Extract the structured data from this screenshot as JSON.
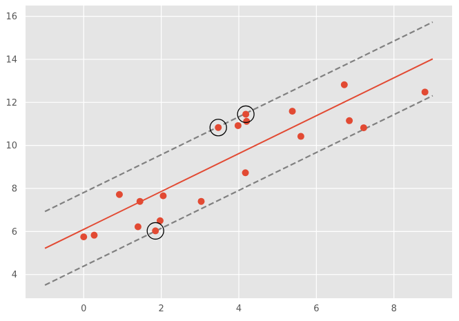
{
  "chart_data": {
    "type": "scatter",
    "title": "",
    "xlabel": "",
    "ylabel": "",
    "xlim": [
      -1.5,
      9.5
    ],
    "ylim": [
      2.9,
      16.5
    ],
    "x_ticks": [
      0,
      2,
      4,
      6,
      8
    ],
    "y_ticks": [
      4,
      6,
      8,
      10,
      12,
      14,
      16
    ],
    "grid": true,
    "legend": "none",
    "points": [
      {
        "x": 0.0,
        "y": 5.75
      },
      {
        "x": 0.27,
        "y": 5.83
      },
      {
        "x": 0.92,
        "y": 7.72
      },
      {
        "x": 1.4,
        "y": 6.22
      },
      {
        "x": 1.45,
        "y": 7.4
      },
      {
        "x": 1.85,
        "y": 6.03
      },
      {
        "x": 1.97,
        "y": 6.5
      },
      {
        "x": 2.05,
        "y": 7.66
      },
      {
        "x": 3.03,
        "y": 7.4
      },
      {
        "x": 3.47,
        "y": 10.83
      },
      {
        "x": 3.98,
        "y": 10.92
      },
      {
        "x": 4.17,
        "y": 8.73
      },
      {
        "x": 4.18,
        "y": 11.45
      },
      {
        "x": 4.2,
        "y": 11.12
      },
      {
        "x": 5.38,
        "y": 11.59
      },
      {
        "x": 5.6,
        "y": 10.42
      },
      {
        "x": 6.72,
        "y": 12.82
      },
      {
        "x": 6.85,
        "y": 11.15
      },
      {
        "x": 7.22,
        "y": 10.82
      },
      {
        "x": 8.8,
        "y": 12.48
      }
    ],
    "highlighted_points": [
      {
        "x": 1.85,
        "y": 6.03
      },
      {
        "x": 3.47,
        "y": 10.83
      },
      {
        "x": 4.18,
        "y": 11.45
      }
    ],
    "fit_line": {
      "x": [
        -1.0,
        9.0
      ],
      "y": [
        5.22,
        14.02
      ]
    },
    "upper_band": {
      "x": [
        -1.0,
        9.0
      ],
      "y": [
        6.93,
        15.73
      ]
    },
    "lower_band": {
      "x": [
        -1.0,
        9.0
      ],
      "y": [
        3.51,
        12.31
      ]
    },
    "colors": {
      "background": "#e5e5e5",
      "grid": "#ffffff",
      "points": "#e24a33",
      "fit_line": "#e24a33",
      "bands": "#808080",
      "highlight": "#000000",
      "tick_text": "#555555"
    }
  }
}
